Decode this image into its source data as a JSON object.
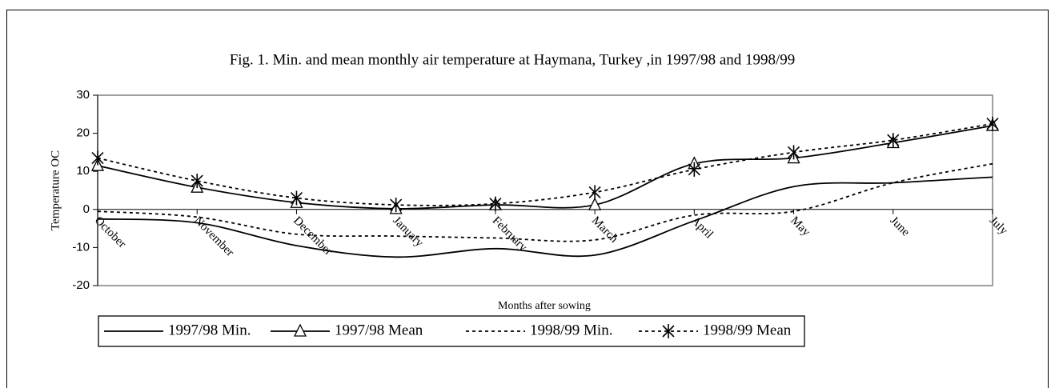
{
  "chart_data": {
    "type": "line",
    "title": "Fig. 1. Min. and mean monthly air temperature at Haymana, Turkey ,in 1997/98 and 1998/99",
    "x_label": "Months after sowing",
    "y_label": "Temperature OC",
    "categories": [
      "October",
      "November",
      "December",
      "January",
      "February",
      "March",
      "April",
      "May",
      "June",
      "July"
    ],
    "series": [
      {
        "name": "1997/98 Min.",
        "color": "#000000",
        "line_style": "solid",
        "values": [
          -2.5,
          -3.5,
          -9.5,
          -12.5,
          -10.3,
          -12,
          -3,
          6,
          7,
          8.5
        ]
      },
      {
        "name": "1997/98 Mean",
        "color": "#000000",
        "line_style": "solid",
        "marker": "triangle",
        "values": [
          11.5,
          5.8,
          1.8,
          0.2,
          1.2,
          1.2,
          12,
          13.5,
          17.5,
          22
        ]
      },
      {
        "name": "1998/99 Min.",
        "color": "#000000",
        "line_style": "dashed",
        "values": [
          -0.5,
          -2,
          -6.5,
          -7,
          -7.5,
          -8,
          -1.5,
          -0.5,
          7,
          12
        ]
      },
      {
        "name": "1998/99 Mean",
        "color": "#000000",
        "line_style": "dashed",
        "marker": "star",
        "values": [
          13.5,
          7.5,
          3,
          1.2,
          1.5,
          4.5,
          10.5,
          15,
          18.2,
          22.5
        ]
      }
    ],
    "ylim": [
      -20,
      30
    ],
    "yticks": [
      -20,
      -10,
      0,
      10,
      20,
      30
    ],
    "legend": "bottom",
    "smooth": true,
    "grid": false
  }
}
